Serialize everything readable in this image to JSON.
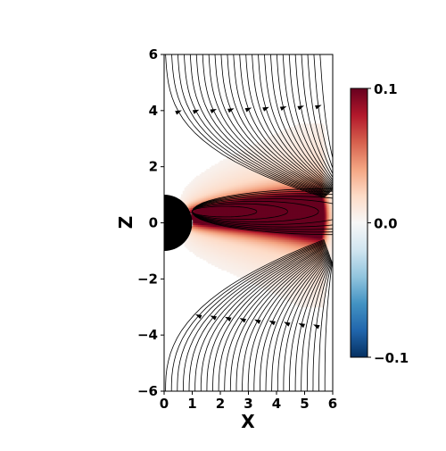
{
  "chart_data": {
    "type": "heatmap",
    "title": "",
    "xlabel": "X",
    "ylabel": "Z",
    "xlim": [
      0,
      6
    ],
    "ylim": [
      -6,
      6
    ],
    "x_ticks": [
      "0",
      "1",
      "2",
      "3",
      "4",
      "5",
      "6"
    ],
    "y_ticks": [
      "−6",
      "−4",
      "−2",
      "0",
      "2",
      "4",
      "6"
    ],
    "colorbar": {
      "vmin": -0.1,
      "vmax": 0.1,
      "ticks": [
        "0.1",
        "0.0",
        "−0.1"
      ],
      "colormap": "RdBu_r",
      "colors": [
        "#053061",
        "#2166ac",
        "#4393c3",
        "#92c5de",
        "#d1e5f0",
        "#f7f7f7",
        "#fddbc7",
        "#f4a582",
        "#d6604d",
        "#b2182b",
        "#67001f"
      ]
    },
    "planet": {
      "radius": 1,
      "color": "#000000"
    },
    "field": {
      "description_values": "positive current sheet on equatorial plane from X≈0.5 to X≈6, peak ≥0.1 between X 1–5.5, |Z| < 0.8",
      "peak_center": [
        3.8,
        0.5
      ],
      "streamlines": "black"
    },
    "grid": false
  }
}
